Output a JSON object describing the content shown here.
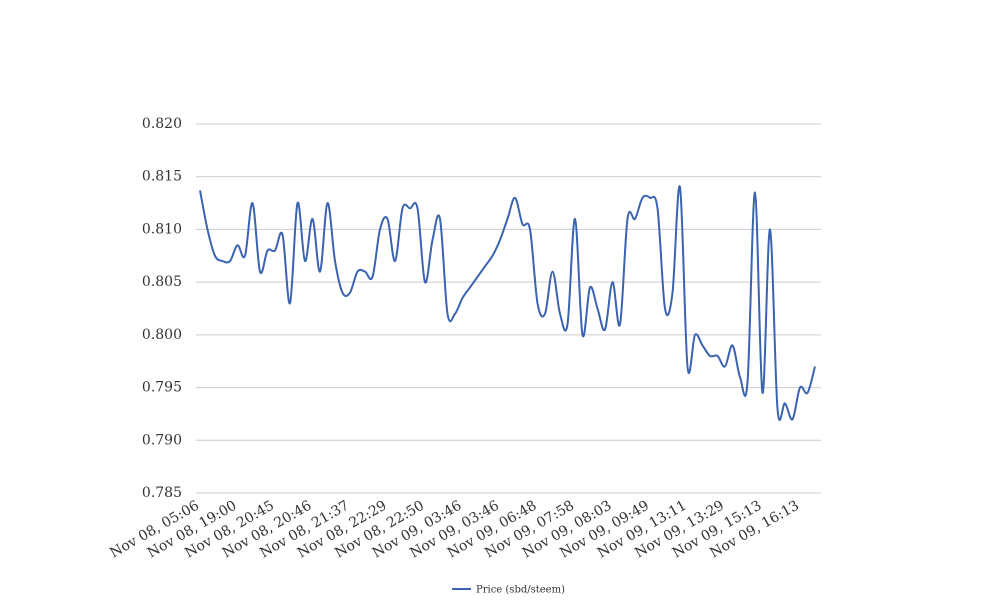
{
  "chart_data": {
    "type": "line",
    "categories": [
      "Nov 08, 05:06",
      null,
      null,
      null,
      null,
      "Nov 08, 19:00",
      null,
      null,
      null,
      null,
      "Nov 08, 20:45",
      null,
      null,
      null,
      null,
      "Nov 08, 20:46",
      null,
      null,
      null,
      null,
      "Nov 08, 21:37",
      null,
      null,
      null,
      null,
      "Nov 08, 22:29",
      null,
      null,
      null,
      null,
      "Nov 08, 22:50",
      null,
      null,
      null,
      null,
      "Nov 09, 03:46",
      null,
      null,
      null,
      null,
      "Nov 09, 03:46",
      null,
      null,
      null,
      null,
      "Nov 09, 06:48",
      null,
      null,
      null,
      null,
      "Nov 09, 07:58",
      null,
      null,
      null,
      null,
      "Nov 09, 08:03",
      null,
      null,
      null,
      null,
      "Nov 09, 09:49",
      null,
      null,
      null,
      null,
      "Nov 09, 13:11",
      null,
      null,
      null,
      null,
      "Nov 09, 13:29",
      null,
      null,
      null,
      null,
      "Nov 09, 15:13",
      null,
      null,
      null,
      null,
      "Nov 09, 16:13",
      null,
      null
    ],
    "series": [
      {
        "name": "Price (sbd/steem)",
        "color": "#3a63b0",
        "values": [
          0.8137,
          0.81,
          0.8075,
          0.807,
          0.807,
          0.8085,
          0.8075,
          0.8125,
          0.806,
          0.808,
          0.808,
          0.8095,
          0.803,
          0.8125,
          0.807,
          0.811,
          0.806,
          0.8125,
          0.807,
          0.804,
          0.804,
          0.806,
          0.806,
          0.8055,
          0.81,
          0.811,
          0.807,
          0.812,
          0.812,
          0.812,
          0.805,
          0.809,
          0.811,
          0.802,
          0.802,
          0.8035,
          0.8045,
          0.8055,
          0.8065,
          0.8075,
          0.809,
          0.811,
          0.813,
          0.8105,
          0.81,
          0.803,
          0.802,
          0.806,
          0.802,
          0.801,
          0.811,
          0.8,
          0.8045,
          0.8025,
          0.8005,
          0.805,
          0.801,
          0.811,
          0.811,
          0.813,
          0.813,
          0.812,
          0.8025,
          0.804,
          0.814,
          0.797,
          0.8,
          0.799,
          0.798,
          0.798,
          0.797,
          0.799,
          0.796,
          0.7955,
          0.8135,
          0.7945,
          0.81,
          0.793,
          0.7935,
          0.792,
          0.795,
          0.7945,
          0.797
        ]
      }
    ],
    "ylim": [
      0.785,
      0.82
    ],
    "yticks": [
      0.785,
      {
        "value": 0.79,
        "label": "0.790"
      },
      0.795,
      {
        "value": 0.8,
        "label": "0.800"
      },
      0.805,
      {
        "value": 0.81,
        "label": "0.810"
      },
      0.815,
      {
        "value": 0.82,
        "label": "0.820"
      }
    ],
    "grid": true,
    "legend": "bottom"
  }
}
